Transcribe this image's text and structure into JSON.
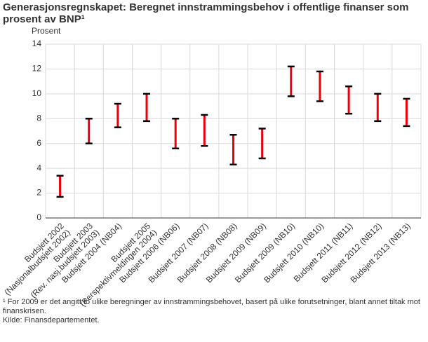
{
  "chart_data": {
    "type": "range",
    "title": "Generasjonsregnskapet: Beregnet innstrammingsbehov i offentlige finanser som prosent av BNP¹",
    "y_label": "Prosent",
    "categories": [
      [
        "Budsjett 2002",
        "(Nasjonalbudsjett 2002)"
      ],
      [
        "Budsjett 2003",
        "(Rev. nasj.budsjett 2003)"
      ],
      [
        "Budsjett 2004 (NB04)"
      ],
      [
        "Budsjett 2005",
        "(Perspektivmeldingen 2004)"
      ],
      [
        "Budsjett 2006 (NB06)"
      ],
      [
        "Budsjett 2007 (NB07)"
      ],
      [
        "Budsjett 2008 (NB08)"
      ],
      [
        "Budsjett 2009 (NB09)"
      ],
      [
        "Budsjett 2009 (NB10)"
      ],
      [
        "Budsjett 2010 (NB10)"
      ],
      [
        "Budsjett 2011 (NB11)"
      ],
      [
        "Budsjett 2012 (NB12)"
      ],
      [
        "Budsjett 2013 (NB13)"
      ]
    ],
    "low": [
      1.7,
      6.0,
      7.3,
      7.8,
      5.6,
      5.8,
      4.3,
      4.8,
      9.8,
      9.4,
      8.4,
      7.8,
      7.4
    ],
    "high": [
      3.4,
      8.0,
      9.2,
      10.0,
      8.0,
      8.3,
      6.7,
      7.2,
      12.2,
      11.8,
      10.6,
      10.0,
      9.6
    ],
    "color": "#e8000b",
    "cap_color": "#000000",
    "ylim": [
      0,
      14
    ],
    "yticks": [
      0,
      2,
      4,
      6,
      8,
      10,
      12,
      14
    ],
    "grid": true,
    "footnote": "¹ For 2009 er det angitt to ulike beregninger av innstrammingsbehovet, basert på ulike forutsetninger, blant annet tiltak mot finanskrisen.",
    "source": "Kilde: Finansdepartementet."
  }
}
